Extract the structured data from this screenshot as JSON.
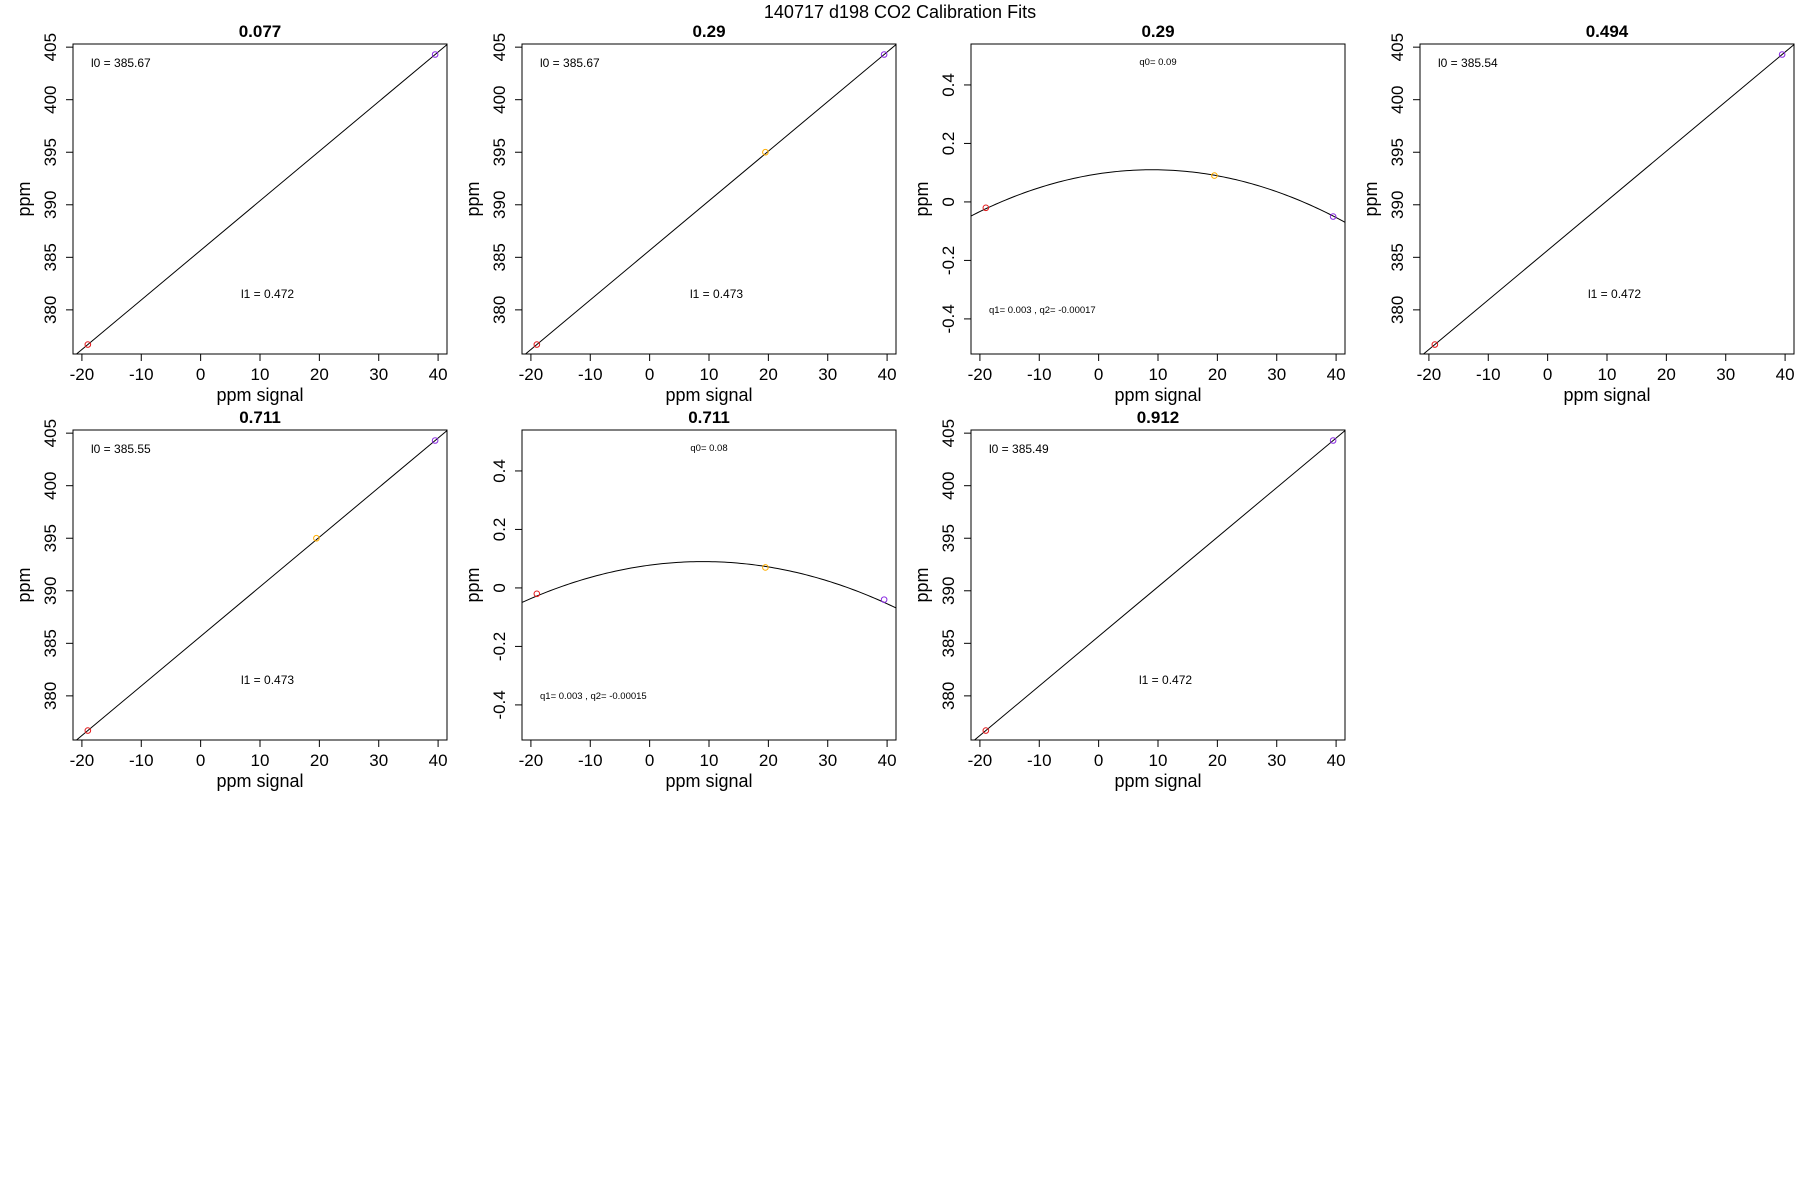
{
  "figure": {
    "title": "140717   d198   CO2 Calibration Fits"
  },
  "colors": {
    "low": "#e31a1c",
    "mid": "#ffae00",
    "high": "#8a2be2",
    "line": "#000000"
  },
  "chart_data": [
    {
      "type": "scatter",
      "fit": "linear",
      "title": "0.077",
      "xlabel": "ppm signal",
      "ylabel": "ppm",
      "xlim": [
        -21.5,
        41.5
      ],
      "ylim": [
        375.8,
        405.3
      ],
      "xticks": [
        -20,
        -10,
        0,
        10,
        20,
        30,
        40
      ],
      "yticks": [
        380,
        385,
        390,
        395,
        400,
        405
      ],
      "points": [
        {
          "x": -19,
          "y": 376.7,
          "c": "low"
        },
        {
          "x": 39.5,
          "y": 404.3,
          "c": "high"
        }
      ],
      "annotations": [
        "l0 =  385.67",
        "l1 =  0.472"
      ]
    },
    {
      "type": "scatter",
      "fit": "linear",
      "title": "0.29",
      "xlabel": "ppm signal",
      "ylabel": "ppm",
      "xlim": [
        -21.5,
        41.5
      ],
      "ylim": [
        375.8,
        405.3
      ],
      "xticks": [
        -20,
        -10,
        0,
        10,
        20,
        30,
        40
      ],
      "yticks": [
        380,
        385,
        390,
        395,
        400,
        405
      ],
      "points": [
        {
          "x": -19,
          "y": 376.7,
          "c": "low"
        },
        {
          "x": 19.5,
          "y": 395.0,
          "c": "mid"
        },
        {
          "x": 39.5,
          "y": 404.3,
          "c": "high"
        }
      ],
      "annotations": [
        "l0 =  385.67",
        "l1 =  0.473"
      ]
    },
    {
      "type": "scatter",
      "fit": "quadratic",
      "title": "0.29",
      "xlabel": "ppm signal",
      "ylabel": "ppm",
      "xlim": [
        -21.5,
        41.5
      ],
      "ylim": [
        -0.52,
        0.54
      ],
      "xticks": [
        -20,
        -10,
        0,
        10,
        20,
        30,
        40
      ],
      "yticks": [
        -0.4,
        -0.2,
        0.0,
        0.2,
        0.4
      ],
      "curve": {
        "vertex_x": 9,
        "vertex_y": 0.11,
        "a": -0.00017
      },
      "points": [
        {
          "x": -19,
          "y": -0.02,
          "c": "low"
        },
        {
          "x": 19.5,
          "y": 0.09,
          "c": "mid"
        },
        {
          "x": 39.5,
          "y": -0.05,
          "c": "high"
        }
      ],
      "annotations": [
        "q0= 0.09",
        "q1= 0.003 , q2= -0.00017"
      ]
    },
    {
      "type": "scatter",
      "fit": "linear",
      "title": "0.494",
      "xlabel": "ppm signal",
      "ylabel": "ppm",
      "xlim": [
        -21.5,
        41.5
      ],
      "ylim": [
        375.8,
        405.3
      ],
      "xticks": [
        -20,
        -10,
        0,
        10,
        20,
        30,
        40
      ],
      "yticks": [
        380,
        385,
        390,
        395,
        400,
        405
      ],
      "points": [
        {
          "x": -19,
          "y": 376.7,
          "c": "low"
        },
        {
          "x": 39.5,
          "y": 404.3,
          "c": "high"
        }
      ],
      "annotations": [
        "l0 =  385.54",
        "l1 =  0.472"
      ]
    },
    {
      "type": "scatter",
      "fit": "linear",
      "title": "0.711",
      "xlabel": "ppm signal",
      "ylabel": "ppm",
      "xlim": [
        -21.5,
        41.5
      ],
      "ylim": [
        375.8,
        405.3
      ],
      "xticks": [
        -20,
        -10,
        0,
        10,
        20,
        30,
        40
      ],
      "yticks": [
        380,
        385,
        390,
        395,
        400,
        405
      ],
      "points": [
        {
          "x": -19,
          "y": 376.7,
          "c": "low"
        },
        {
          "x": 19.5,
          "y": 395.0,
          "c": "mid"
        },
        {
          "x": 39.5,
          "y": 404.3,
          "c": "high"
        }
      ],
      "annotations": [
        "l0 =  385.55",
        "l1 =  0.473"
      ]
    },
    {
      "type": "scatter",
      "fit": "quadratic",
      "title": "0.711",
      "xlabel": "ppm signal",
      "ylabel": "ppm",
      "xlim": [
        -21.5,
        41.5
      ],
      "ylim": [
        -0.52,
        0.54
      ],
      "xticks": [
        -20,
        -10,
        0,
        10,
        20,
        30,
        40
      ],
      "yticks": [
        -0.4,
        -0.2,
        0.0,
        0.2,
        0.4
      ],
      "curve": {
        "vertex_x": 9,
        "vertex_y": 0.09,
        "a": -0.00015
      },
      "points": [
        {
          "x": -19,
          "y": -0.02,
          "c": "low"
        },
        {
          "x": 19.5,
          "y": 0.07,
          "c": "mid"
        },
        {
          "x": 39.5,
          "y": -0.04,
          "c": "high"
        }
      ],
      "annotations": [
        "q0= 0.08",
        "q1= 0.003 , q2= -0.00015"
      ]
    },
    {
      "type": "scatter",
      "fit": "linear",
      "title": "0.912",
      "xlabel": "ppm signal",
      "ylabel": "ppm",
      "xlim": [
        -21.5,
        41.5
      ],
      "ylim": [
        375.8,
        405.3
      ],
      "xticks": [
        -20,
        -10,
        0,
        10,
        20,
        30,
        40
      ],
      "yticks": [
        380,
        385,
        390,
        395,
        400,
        405
      ],
      "points": [
        {
          "x": -19,
          "y": 376.7,
          "c": "low"
        },
        {
          "x": 39.5,
          "y": 404.3,
          "c": "high"
        }
      ],
      "annotations": [
        "l0 =  385.49",
        "l1 =  0.472"
      ]
    }
  ]
}
